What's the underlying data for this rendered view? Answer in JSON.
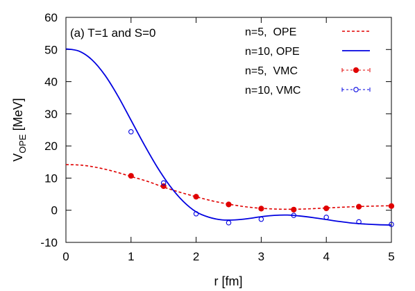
{
  "chart_data": {
    "type": "line",
    "title": "",
    "annotation": "(a) T=1 and S=0",
    "xlabel": "r [fm]",
    "ylabel": {
      "base": "V",
      "subscript": "OPE",
      "unit": " [MeV]"
    },
    "xlim": [
      0,
      5
    ],
    "ylim": [
      -10,
      60
    ],
    "x_ticks": [
      "0",
      "1",
      "2",
      "3",
      "4",
      "5"
    ],
    "y_ticks": [
      "-10",
      "0",
      "10",
      "20",
      "30",
      "40",
      "50",
      "60"
    ],
    "grid": false,
    "legend_position": "top-right",
    "series": [
      {
        "name": "n=5,  OPE",
        "kind": "line",
        "style": "dashed",
        "color": "#e00000",
        "x": [
          0,
          0.25,
          0.5,
          0.75,
          1.0,
          1.25,
          1.5,
          1.75,
          2.0,
          2.25,
          2.5,
          2.75,
          3.0,
          3.25,
          3.5,
          3.75,
          4.0,
          4.25,
          4.5,
          4.75,
          5.0
        ],
        "y": [
          14.2,
          14.0,
          13.2,
          12.0,
          10.5,
          9.0,
          7.2,
          5.6,
          4.2,
          2.9,
          1.9,
          1.1,
          0.6,
          0.35,
          0.3,
          0.45,
          0.7,
          0.95,
          1.15,
          1.3,
          1.4
        ]
      },
      {
        "name": "n=10, OPE",
        "kind": "line",
        "style": "solid",
        "color": "#0000e0",
        "x": [
          0,
          0.2,
          0.4,
          0.6,
          0.8,
          1.0,
          1.2,
          1.4,
          1.6,
          1.8,
          2.0,
          2.2,
          2.4,
          2.6,
          2.8,
          3.0,
          3.2,
          3.4,
          3.6,
          3.8,
          4.0,
          4.2,
          4.4,
          4.6,
          4.8,
          5.0
        ],
        "y": [
          50.2,
          49.5,
          46.8,
          42.0,
          35.5,
          28.0,
          20.5,
          13.5,
          7.5,
          2.8,
          -0.5,
          -2.2,
          -3.0,
          -3.0,
          -2.6,
          -2.0,
          -1.6,
          -1.5,
          -1.8,
          -2.3,
          -2.9,
          -3.5,
          -4.0,
          -4.3,
          -4.5,
          -4.6
        ]
      },
      {
        "name": "n=5,  VMC",
        "kind": "points",
        "marker": "filled-circle",
        "color": "#e00000",
        "x": [
          1.0,
          1.5,
          2.0,
          2.5,
          3.0,
          3.5,
          4.0,
          4.5,
          5.0
        ],
        "y": [
          10.7,
          7.5,
          4.2,
          1.8,
          0.5,
          0.2,
          0.6,
          1.1,
          1.3
        ]
      },
      {
        "name": "n=10, VMC",
        "kind": "points",
        "marker": "open-circle",
        "color": "#0000e0",
        "x": [
          1.0,
          1.5,
          2.0,
          2.5,
          3.0,
          3.5,
          4.0,
          4.5,
          5.0
        ],
        "y": [
          24.4,
          8.5,
          -1.1,
          -3.9,
          -2.8,
          -1.6,
          -2.2,
          -3.6,
          -4.4
        ]
      }
    ]
  }
}
